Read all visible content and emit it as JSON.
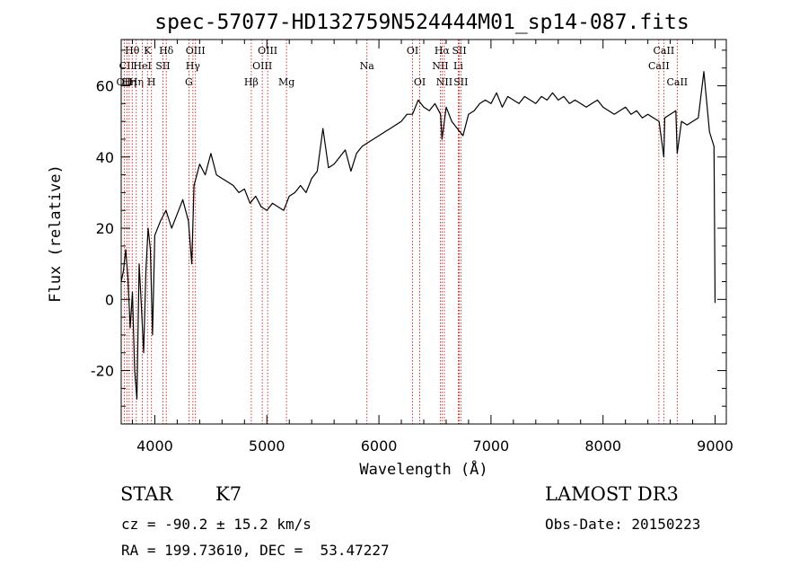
{
  "chart_data": {
    "type": "line",
    "title": "spec-57077-HD132759N524444M01_sp14-087.fits",
    "xlabel": "Wavelength (Å)",
    "ylabel": "Flux (relative)",
    "xlim": [
      3700,
      9100
    ],
    "ylim": [
      -35,
      73
    ],
    "xticks": [
      4000,
      5000,
      6000,
      7000,
      8000,
      9000
    ],
    "yticks": [
      -20,
      0,
      20,
      40,
      60
    ],
    "grid": false,
    "series": [
      {
        "name": "spectrum",
        "x": [
          3700,
          3720,
          3740,
          3760,
          3780,
          3800,
          3820,
          3840,
          3860,
          3880,
          3900,
          3920,
          3940,
          3960,
          3980,
          4000,
          4050,
          4100,
          4150,
          4200,
          4250,
          4300,
          4330,
          4350,
          4400,
          4450,
          4500,
          4550,
          4600,
          4650,
          4700,
          4750,
          4800,
          4850,
          4900,
          4950,
          5000,
          5050,
          5100,
          5150,
          5200,
          5250,
          5300,
          5350,
          5400,
          5450,
          5500,
          5550,
          5600,
          5650,
          5700,
          5750,
          5800,
          5850,
          5900,
          5950,
          6000,
          6050,
          6100,
          6150,
          6200,
          6250,
          6300,
          6350,
          6400,
          6450,
          6500,
          6550,
          6563,
          6600,
          6650,
          6700,
          6750,
          6800,
          6850,
          6900,
          6950,
          7000,
          7050,
          7100,
          7150,
          7200,
          7250,
          7300,
          7350,
          7400,
          7450,
          7500,
          7550,
          7600,
          7650,
          7700,
          7750,
          7800,
          7850,
          7900,
          7950,
          8000,
          8050,
          8100,
          8150,
          8200,
          8250,
          8300,
          8350,
          8400,
          8450,
          8500,
          8542,
          8550,
          8600,
          8650,
          8662,
          8700,
          8750,
          8800,
          8850,
          8900,
          8950,
          8990,
          9000
        ],
        "values": [
          5,
          8,
          14,
          6,
          -8,
          2,
          -20,
          -28,
          10,
          -2,
          -15,
          8,
          20,
          14,
          -10,
          18,
          22,
          25,
          20,
          24,
          28,
          22,
          10,
          32,
          38,
          35,
          41,
          35,
          34,
          33,
          32,
          30,
          31,
          27,
          29,
          26,
          25,
          27,
          26,
          25,
          29,
          30,
          32,
          30,
          34,
          36,
          48,
          37,
          38,
          40,
          42,
          36,
          41,
          43,
          44,
          45,
          46,
          47,
          48,
          49,
          50,
          52,
          52,
          56,
          54,
          53,
          55,
          52,
          45,
          54,
          50,
          48,
          46,
          52,
          53,
          55,
          56,
          55,
          58,
          54,
          57,
          56,
          55,
          57,
          56,
          55,
          57,
          56,
          58,
          56,
          57,
          55,
          56,
          55,
          54,
          55,
          56,
          54,
          53,
          52,
          53,
          54,
          52,
          53,
          51,
          52,
          51,
          50,
          40,
          51,
          52,
          53,
          41,
          50,
          49,
          50,
          51,
          64,
          47,
          43,
          -1
        ]
      }
    ],
    "line_marks": [
      {
        "wavelength": 3727,
        "label": "OII",
        "row": 3
      },
      {
        "wavelength": 3750,
        "label": "CII",
        "row": 2
      },
      {
        "wavelength": 3771,
        "label": "Hη",
        "row": 3
      },
      {
        "wavelength": 3798,
        "label": "Hθ",
        "row": 1
      },
      {
        "wavelength": 3835,
        "label": "Hη",
        "row": 3
      },
      {
        "wavelength": 3889,
        "label": "HeI",
        "row": 2
      },
      {
        "wavelength": 3934,
        "label": "K",
        "row": 1
      },
      {
        "wavelength": 3970,
        "label": "H",
        "row": 3
      },
      {
        "wavelength": 4072,
        "label": "SII",
        "row": 2
      },
      {
        "wavelength": 4102,
        "label": "Hδ",
        "row": 1
      },
      {
        "wavelength": 4304,
        "label": "G",
        "row": 3
      },
      {
        "wavelength": 4340,
        "label": "Hγ",
        "row": 2
      },
      {
        "wavelength": 4363,
        "label": "OIII",
        "row": 1
      },
      {
        "wavelength": 4861,
        "label": "Hβ",
        "row": 3
      },
      {
        "wavelength": 4959,
        "label": "OIII",
        "row": 2
      },
      {
        "wavelength": 5007,
        "label": "OIII",
        "row": 1
      },
      {
        "wavelength": 5175,
        "label": "Mg",
        "row": 3
      },
      {
        "wavelength": 5893,
        "label": "Na",
        "row": 2
      },
      {
        "wavelength": 6300,
        "label": "OI",
        "row": 1
      },
      {
        "wavelength": 6364,
        "label": "OI",
        "row": 3
      },
      {
        "wavelength": 6548,
        "label": "NII",
        "row": 2
      },
      {
        "wavelength": 6563,
        "label": "Hα",
        "row": 1
      },
      {
        "wavelength": 6584,
        "label": "NII",
        "row": 3
      },
      {
        "wavelength": 6708,
        "label": "Li",
        "row": 2
      },
      {
        "wavelength": 6717,
        "label": "SII",
        "row": 1
      },
      {
        "wavelength": 6731,
        "label": "SII",
        "row": 3
      },
      {
        "wavelength": 8498,
        "label": "CaII",
        "row": 2
      },
      {
        "wavelength": 8542,
        "label": "CaII",
        "row": 1
      },
      {
        "wavelength": 8662,
        "label": "CaII",
        "row": 3
      }
    ]
  },
  "info": {
    "object_class": "STAR",
    "subclass": "K7",
    "cz_text": "cz = -90.2 ± 15.2 km/s",
    "radec_text": "RA = 199.73610, DEC =  53.47227",
    "survey": "LAMOST DR3",
    "obs_date_text": "Obs-Date: 20150223"
  },
  "colors": {
    "spectrum": "#000000",
    "line_marker": "#cc0000",
    "axes": "#000000",
    "background": "#ffffff"
  }
}
